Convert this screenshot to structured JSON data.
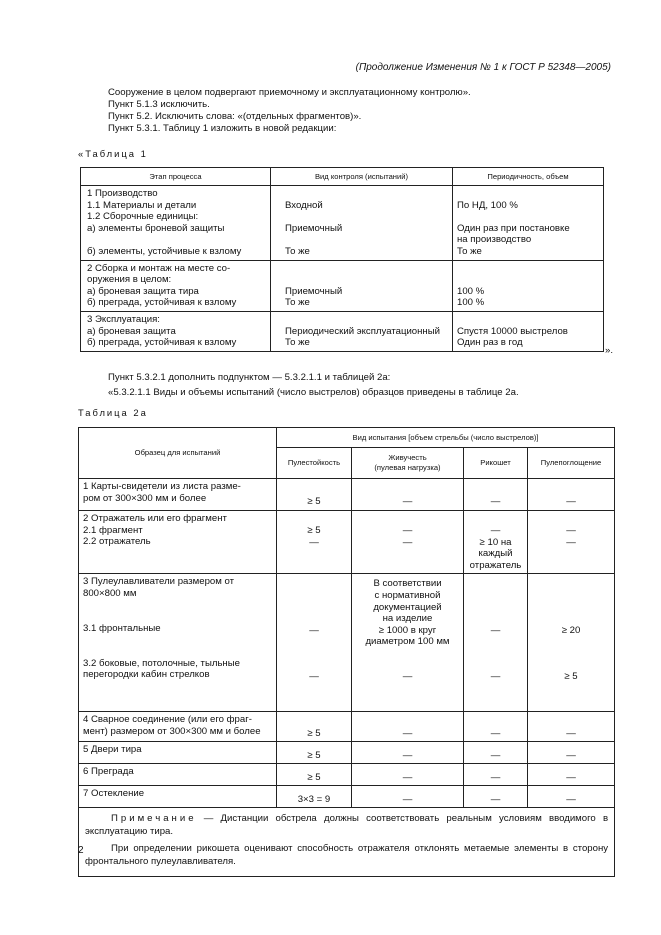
{
  "header": "(Продолжение Изменения № 1 к ГОСТ Р 52348—2005)",
  "intro": [
    "Сооружение в целом подвергают приемочному и эксплуатационному контролю».",
    "Пункт 5.1.3 исключить.",
    "Пункт 5.2. Исключить слова: «(отдельных фрагментов)».",
    "Пункт 5.3.1. Таблицу 1 изложить в новой редакции:"
  ],
  "table1": {
    "caption": "«Таблица 1",
    "headers": [
      "Этап процесса",
      "Вид контроля (испытаний)",
      "Периодичность, объем"
    ],
    "rows": [
      [
        "  1 Производство\n  1.1 Материалы и детали\n  1.2 Сборочные единицы:\n  а) элементы броневой защиты\n\n  б) элементы, устойчивые к взлому",
        "\nВходной\n\nПриемочный\n\nТо же",
        "\n  По НД, 100 %\n\n  Один раз при постановке\nна производство\n  То же"
      ],
      [
        "  2 Сборка и монтаж на месте со-\nоружения в целом:\n  а) броневая защита тира\n  б) преграда, устойчивая к взлому",
        "\n\nПриемочный\nТо же",
        "\n\n  100 %\n  100 %"
      ],
      [
        "  3 Эксплуатация:\n  а) броневая защита\n  б) преграда, устойчивая к взлому",
        "\nПериодический эксплуатационный\nТо же",
        "\n  Спустя 10000 выстрелов\n  Один раз в год"
      ]
    ],
    "closing": "»."
  },
  "middle": [
    "Пункт 5.3.2.1 дополнить подпунктом — 5.3.2.1.1 и таблицей 2а:",
    "«5.3.2.1.1 Виды и объемы испытаний (число выстрелов) образцов приведены в таблице 2а."
  ],
  "table2a": {
    "caption": "Таблица 2а",
    "header_sample": "Образец для испытаний",
    "header_group": "Вид испытания [объем стрельбы (число выстрелов)]",
    "headers": [
      "Пулестойкость",
      "Живучесть\n(пулевая нагрузка)",
      "Рикошет",
      "Пулепоглощение"
    ],
    "rows": [
      [
        "  1 Карты-свидетели из листа разме-\nром от 300×300 мм и более",
        "≥ 5",
        "—",
        "—",
        "—"
      ],
      [
        "  2 Отражатель или его фрагмент\n  2.1 фрагмент\n  2.2 отражатель\n\n",
        "≥ 5\n—\n\n\n",
        "—\n—\n\n\n",
        "—\n≥ 10 на\nкаждый\nотражатель",
        "—\n—\n\n\n"
      ],
      [
        "  3 Пулеулавливатели размером от\n800×800 мм\n\n\n  3.1 фронтальные\n\n\n  3.2 боковые, потолочные, тыльные\nперегородки кабин стрелков",
        "\n\n\n\n—\n\n\n\n—",
        "В соответствии\nс нормативной\nдокументацией\nна изделие\n≥ 1000 в круг\nдиаметром 100 мм\n\n\n—",
        "\n\n\n\n—\n\n\n\n—",
        "\n\n\n\n≥ 20\n\n\n\n≥ 5"
      ],
      [
        "  4 Сварное соединение (или его фраг-\nмент) размером от 300×300 мм и более",
        "≥ 5",
        "—",
        "—",
        "—"
      ],
      [
        "  5 Двери тира",
        "≥ 5",
        "—",
        "—",
        "—"
      ],
      [
        "  6 Преграда",
        "≥ 5",
        "—",
        "—",
        "—"
      ],
      [
        "  7 Остекление",
        "3×3 = 9",
        "—",
        "—",
        "—"
      ]
    ],
    "note_label": "Примечание",
    "note_text": " — Дистанции обстрела должны соответствовать реальным условиям вводимого в эксплуатацию тира.",
    "note_2": "При определении рикошета оценивают способность отражателя отклонять метаемые элементы в сторону фронтального пулеулавливателя."
  },
  "page_number": "2"
}
